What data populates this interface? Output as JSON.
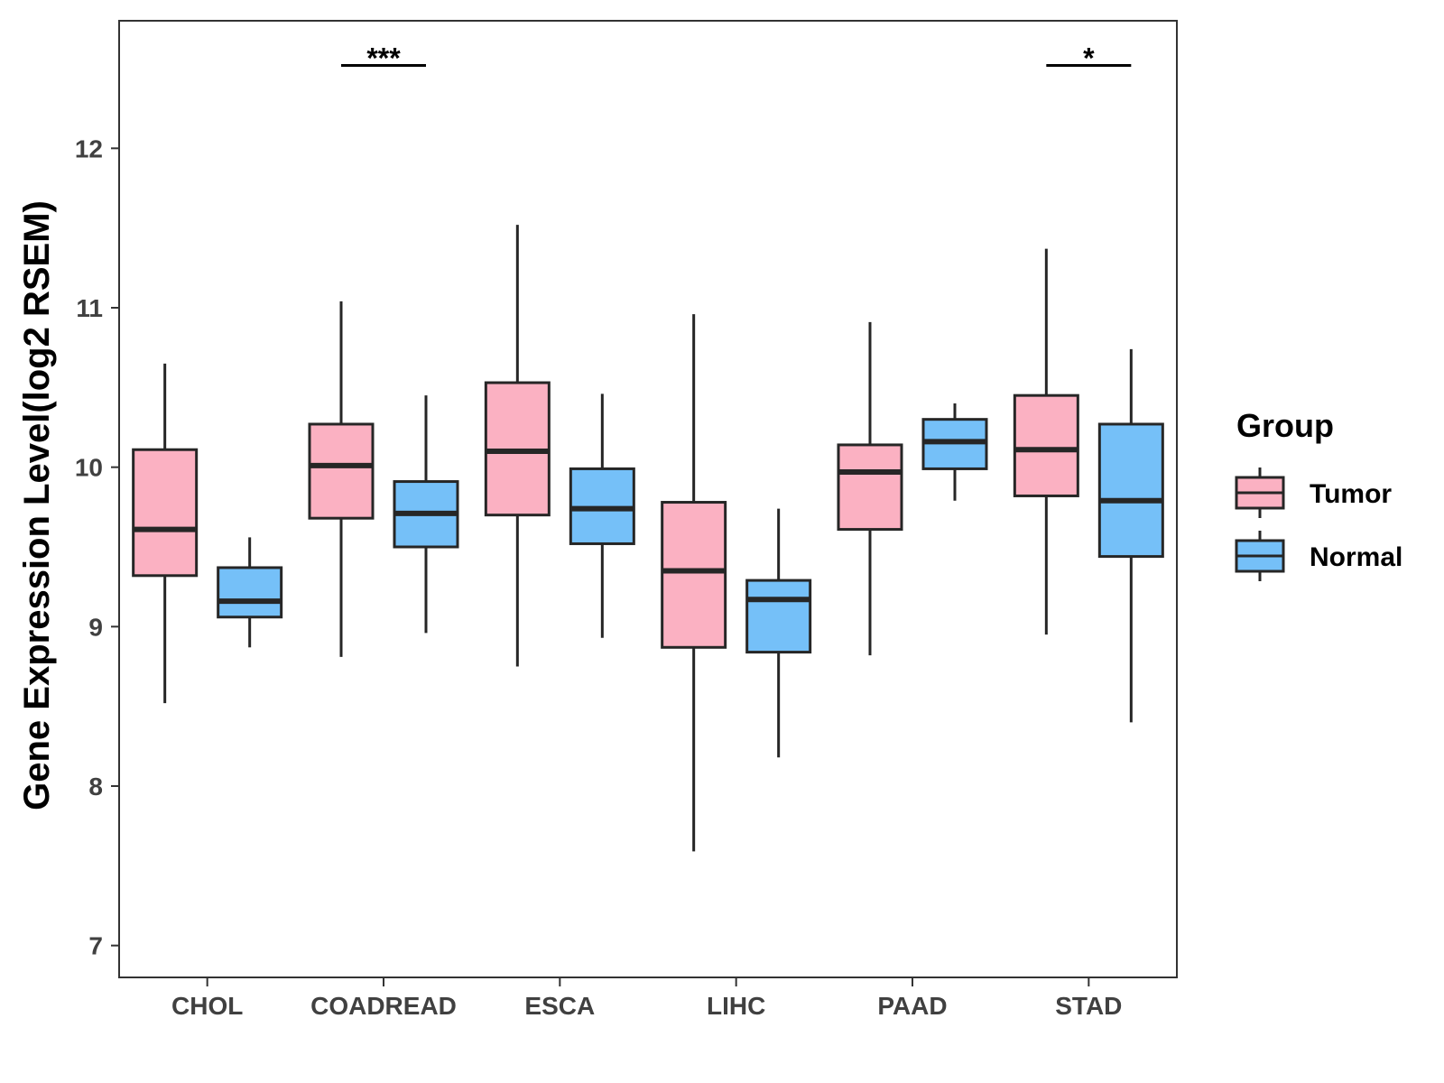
{
  "chart_data": {
    "type": "boxplot",
    "title": "",
    "xlabel": "",
    "ylabel": "Gene Expression Level(log2 RSEM)",
    "ylim": [
      6.8,
      12.8
    ],
    "yticks": [
      7,
      8,
      9,
      10,
      11,
      12
    ],
    "grid": false,
    "legend_position": "right",
    "categories": [
      "CHOL",
      "COADREAD",
      "ESCA",
      "LIHC",
      "PAAD",
      "STAD"
    ],
    "legend": {
      "title": "Group",
      "entries": [
        "Tumor",
        "Normal"
      ]
    },
    "series": [
      {
        "name": "Tumor",
        "color": "#FBB1C2",
        "stats": [
          {
            "min": 8.52,
            "q1": 9.32,
            "median": 9.61,
            "q3": 10.11,
            "max": 10.65
          },
          {
            "min": 8.81,
            "q1": 9.68,
            "median": 10.01,
            "q3": 10.27,
            "max": 11.04
          },
          {
            "min": 8.75,
            "q1": 9.7,
            "median": 10.1,
            "q3": 10.53,
            "max": 11.52
          },
          {
            "min": 7.59,
            "q1": 8.87,
            "median": 9.35,
            "q3": 9.78,
            "max": 10.96
          },
          {
            "min": 8.82,
            "q1": 9.61,
            "median": 9.97,
            "q3": 10.14,
            "max": 10.91
          },
          {
            "min": 8.95,
            "q1": 9.82,
            "median": 10.11,
            "q3": 10.45,
            "max": 11.37
          }
        ]
      },
      {
        "name": "Normal",
        "color": "#75C0F8",
        "stats": [
          {
            "min": 8.87,
            "q1": 9.06,
            "median": 9.16,
            "q3": 9.37,
            "max": 9.56
          },
          {
            "min": 8.96,
            "q1": 9.5,
            "median": 9.71,
            "q3": 9.91,
            "max": 10.45
          },
          {
            "min": 8.93,
            "q1": 9.52,
            "median": 9.74,
            "q3": 9.99,
            "max": 10.46
          },
          {
            "min": 8.18,
            "q1": 8.84,
            "median": 9.17,
            "q3": 9.29,
            "max": 9.74
          },
          {
            "min": 9.79,
            "q1": 9.99,
            "median": 10.16,
            "q3": 10.3,
            "max": 10.4
          },
          {
            "min": 8.4,
            "q1": 9.44,
            "median": 9.79,
            "q3": 10.27,
            "max": 10.74
          }
        ]
      }
    ],
    "annotations": [
      {
        "category": "COADREAD",
        "label": "***",
        "y": 12.52
      },
      {
        "category": "STAD",
        "label": "*",
        "y": 12.52
      }
    ]
  }
}
